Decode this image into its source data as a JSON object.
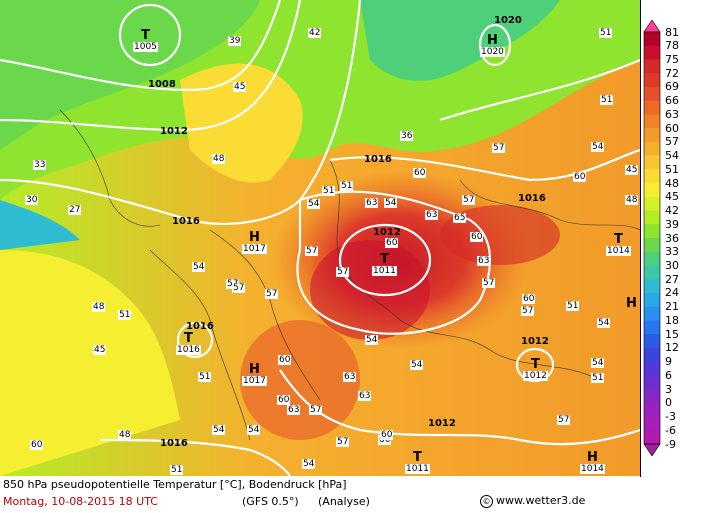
{
  "title_line": "850 hPa pseudopotentielle Temperatur [°C], Bodendruck [hPa]",
  "date_line": "Montag, 10-08-2015  18 UTC",
  "model": "(GFS 0.5°)",
  "run_type": "(Analyse)",
  "copyright_symbol": "©",
  "website": "www.wetter3.de",
  "colorbar": {
    "ticks": [
      "81",
      "78",
      "75",
      "72",
      "69",
      "66",
      "63",
      "60",
      "57",
      "54",
      "51",
      "48",
      "45",
      "42",
      "39",
      "36",
      "33",
      "30",
      "27",
      "24",
      "21",
      "18",
      "15",
      "12",
      "9",
      "6",
      "3",
      "0",
      "-3",
      "-6",
      "-9"
    ],
    "colors": [
      "#ff3d9a",
      "#b5002a",
      "#c8102e",
      "#d42a2a",
      "#dd3a2a",
      "#e5502a",
      "#ea6a26",
      "#ef8426",
      "#f29a2a",
      "#f5b02e",
      "#f8c632",
      "#fadc34",
      "#f6ee30",
      "#d8f028",
      "#b4ec28",
      "#8ee42e",
      "#6ad84a",
      "#4ed07a",
      "#3cc8a8",
      "#30bcd0",
      "#2aa8e8",
      "#2a90f0",
      "#2a74ec",
      "#2c5ae6",
      "#3c44de",
      "#5438d8",
      "#6c30d0",
      "#8628c8",
      "#9a22c0",
      "#a81eb8",
      "#b01ab0"
    ],
    "top_arrow_color": "#ff3d9a",
    "bottom_arrow_color": "#a020a0"
  },
  "pressure_centers": [
    {
      "type": "T",
      "value": "1005"
    },
    {
      "type": "H",
      "value": "1020"
    },
    {
      "type": "H",
      "value": "1017"
    },
    {
      "type": "T",
      "value": "1011"
    },
    {
      "type": "T",
      "value": "1016"
    },
    {
      "type": "H",
      "value": "1017"
    },
    {
      "type": "T",
      "value": "1012"
    },
    {
      "type": "T",
      "value": "1014"
    },
    {
      "type": "H",
      "value": ""
    },
    {
      "type": "T",
      "value": "1011"
    },
    {
      "type": "H",
      "value": "1014"
    }
  ],
  "isobar_labels": [
    "1008",
    "1012",
    "1016",
    "1016",
    "1012",
    "1016",
    "1012",
    "1016",
    "1016",
    "1020",
    "1012"
  ],
  "theta_labels": [
    "39",
    "42",
    "45",
    "48",
    "51",
    "54",
    "57",
    "60",
    "63",
    "65",
    "30",
    "27",
    "33",
    "36",
    "48",
    "51",
    "54",
    "57",
    "51",
    "54",
    "45",
    "48",
    "54",
    "57",
    "60",
    "63",
    "51",
    "54",
    "57",
    "60",
    "57",
    "54",
    "51",
    "48",
    "45",
    "54",
    "57",
    "60",
    "51",
    "54",
    "57",
    "63",
    "60",
    "57",
    "54",
    "63",
    "60",
    "57",
    "60",
    "63",
    "51",
    "54",
    "57",
    "60",
    "51",
    "57",
    "60",
    "51",
    "54",
    "57",
    "60",
    "63"
  ]
}
